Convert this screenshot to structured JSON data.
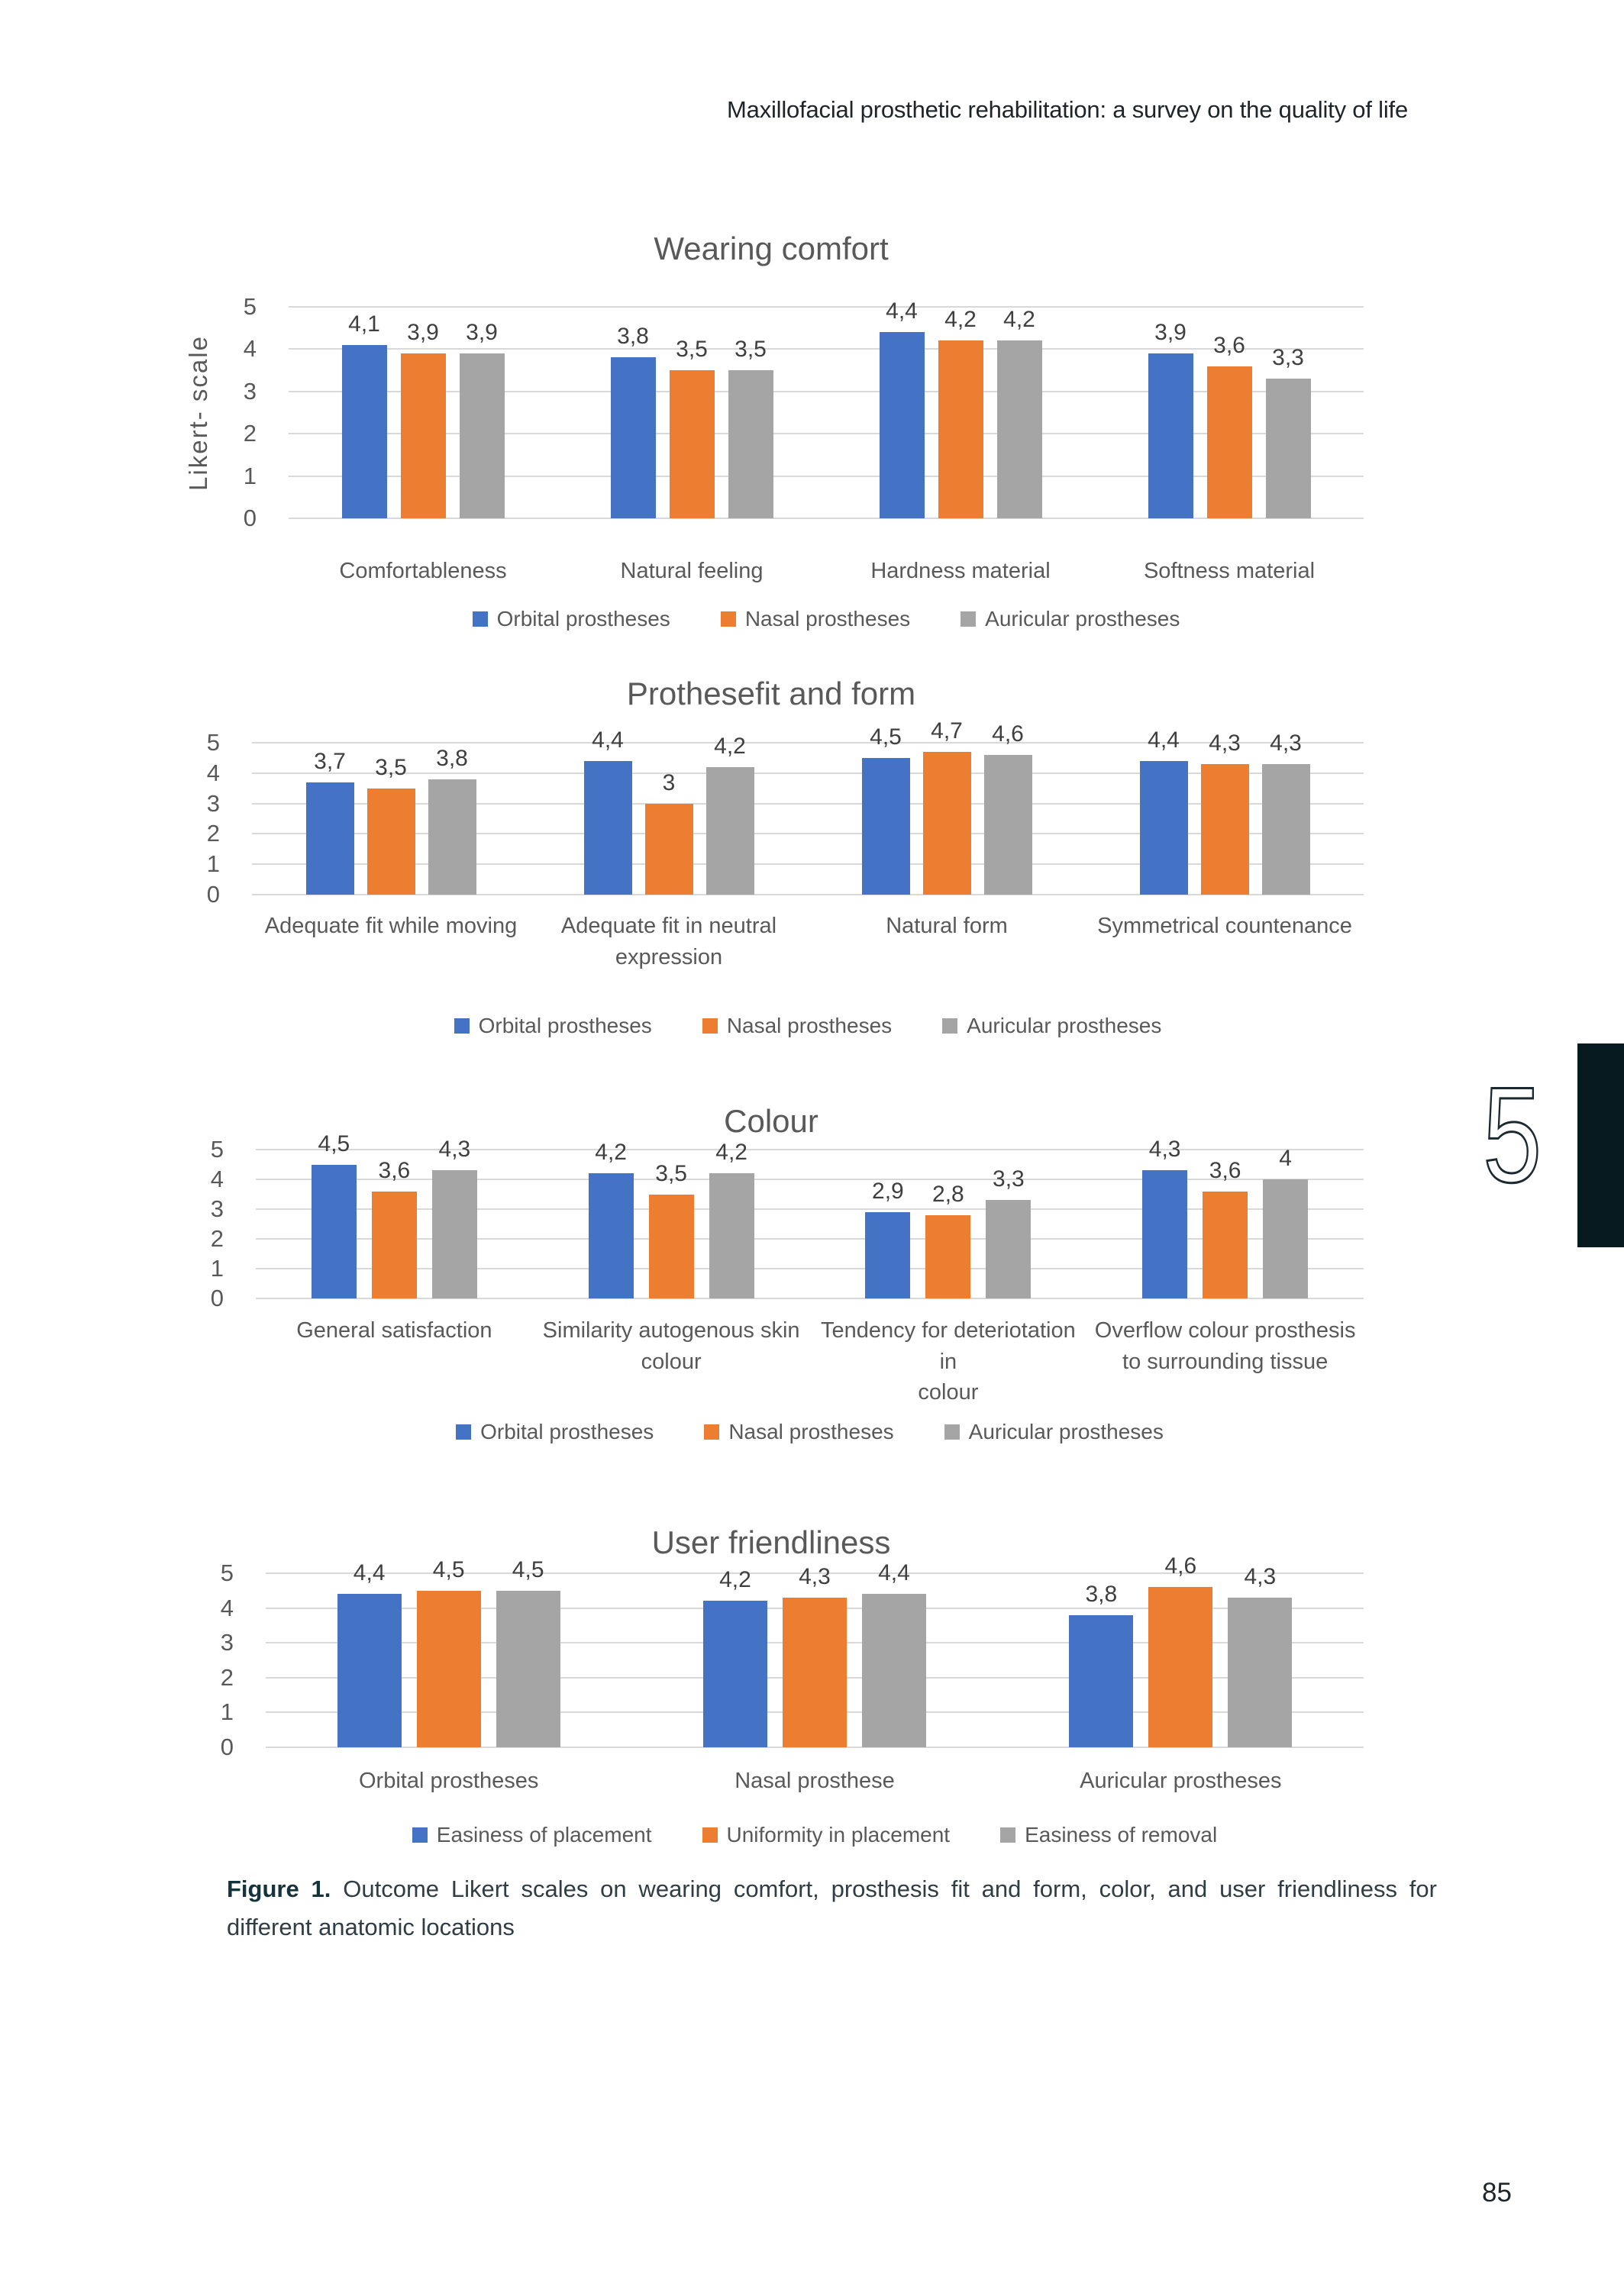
{
  "header": {
    "running_title": "Maxillofacial prosthetic rehabilitation: a survey on the quality of life"
  },
  "chapter": {
    "number": "5"
  },
  "footer": {
    "page_number": "85"
  },
  "caption": {
    "label": "Figure 1.",
    "text": "Outcome Likert scales on wearing comfort, prosthesis fit and form, color, and user friendliness for different anatomic locations"
  },
  "colors": {
    "orbital_blue": "#4472C4",
    "nasal_orange": "#ED7D31",
    "auricular_gray": "#A5A5A5",
    "series_colors": [
      "#4472C4",
      "#ED7D31",
      "#A5A5A5"
    ],
    "gridline": "#D9D9D9",
    "chart_text": "#595959",
    "data_label": "#3F3F3F",
    "chapter_bar": "#071A1F"
  },
  "chart_data": [
    {
      "type": "bar",
      "title": "Wearing comfort",
      "ylabel": "Likert- scale",
      "ylim": [
        0,
        5
      ],
      "yticks": [
        0,
        1,
        2,
        3,
        4,
        5
      ],
      "grid": true,
      "legend_position": "bottom",
      "legend": [
        "Orbital prostheses",
        "Nasal prostheses",
        "Auricular prostheses"
      ],
      "categories": [
        "Comfortableness",
        "Natural feeling",
        "Hardness material",
        "Softness material"
      ],
      "category_lines": [
        [
          "Comfortableness"
        ],
        [
          "Natural feeling"
        ],
        [
          "Hardness material"
        ],
        [
          "Softness material"
        ]
      ],
      "series": [
        {
          "name": "Orbital prostheses",
          "values": [
            4.1,
            3.8,
            4.4,
            3.9
          ],
          "labels": [
            "4,1",
            "3,8",
            "4,4",
            "3,9"
          ]
        },
        {
          "name": "Nasal prostheses",
          "values": [
            3.9,
            3.5,
            4.2,
            3.6
          ],
          "labels": [
            "3,9",
            "3,5",
            "4,2",
            "3,6"
          ]
        },
        {
          "name": "Auricular prostheses",
          "values": [
            3.9,
            3.5,
            4.2,
            3.3
          ],
          "labels": [
            "3,9",
            "3,5",
            "4,2",
            "3,3"
          ]
        }
      ]
    },
    {
      "type": "bar",
      "title": "Prothesefit and form",
      "ylim": [
        0,
        5
      ],
      "yticks": [
        0,
        1,
        2,
        3,
        4,
        5
      ],
      "grid": true,
      "legend_position": "bottom",
      "legend": [
        "Orbital prostheses",
        "Nasal prostheses",
        "Auricular prostheses"
      ],
      "categories": [
        "Adequate fit while moving",
        "Adequate fit in neutral expression",
        "Natural form",
        "Symmetrical countenance"
      ],
      "category_lines": [
        [
          "Adequate fit while moving"
        ],
        [
          "Adequate fit in neutral",
          "expression"
        ],
        [
          "Natural form"
        ],
        [
          "Symmetrical countenance"
        ]
      ],
      "series": [
        {
          "name": "Orbital prostheses",
          "values": [
            3.7,
            4.4,
            4.5,
            4.4
          ],
          "labels": [
            "3,7",
            "4,4",
            "4,5",
            "4,4"
          ]
        },
        {
          "name": "Nasal prostheses",
          "values": [
            3.5,
            3.0,
            4.7,
            4.3
          ],
          "labels": [
            "3,5",
            "3",
            "4,7",
            "4,3"
          ]
        },
        {
          "name": "Auricular prostheses",
          "values": [
            3.8,
            4.2,
            4.6,
            4.3
          ],
          "labels": [
            "3,8",
            "4,2",
            "4,6",
            "4,3"
          ]
        }
      ]
    },
    {
      "type": "bar",
      "title": "Colour",
      "ylim": [
        0,
        5
      ],
      "yticks": [
        0,
        1,
        2,
        3,
        4,
        5
      ],
      "grid": true,
      "legend_position": "bottom",
      "legend": [
        "Orbital prostheses",
        "Nasal prostheses",
        "Auricular prostheses"
      ],
      "categories": [
        "General satisfaction",
        "Similarity autogenous skin colour",
        "Tendency for deteriotation in colour",
        "Overflow colour prosthesis to surrounding tissue"
      ],
      "category_lines": [
        [
          "General satisfaction"
        ],
        [
          "Similarity autogenous skin",
          "colour"
        ],
        [
          "Tendency for deteriotation in",
          "colour"
        ],
        [
          "Overflow colour prosthesis",
          "to surrounding tissue"
        ]
      ],
      "series": [
        {
          "name": "Orbital prostheses",
          "values": [
            4.5,
            4.2,
            2.9,
            4.3
          ],
          "labels": [
            "4,5",
            "4,2",
            "2,9",
            "4,3"
          ]
        },
        {
          "name": "Nasal prostheses",
          "values": [
            3.6,
            3.5,
            2.8,
            3.6
          ],
          "labels": [
            "3,6",
            "3,5",
            "2,8",
            "3,6"
          ]
        },
        {
          "name": "Auricular prostheses",
          "values": [
            4.3,
            4.2,
            3.3,
            4.0
          ],
          "labels": [
            "4,3",
            "4,2",
            "3,3",
            "4"
          ]
        }
      ]
    },
    {
      "type": "bar",
      "title": "User friendliness",
      "ylim": [
        0,
        5
      ],
      "yticks": [
        0,
        1,
        2,
        3,
        4,
        5
      ],
      "grid": true,
      "legend_position": "bottom",
      "legend": [
        "Easiness of placement",
        "Uniformity in placement",
        "Easiness of removal"
      ],
      "categories": [
        "Orbital prostheses",
        "Nasal prosthese",
        "Auricular prostheses"
      ],
      "category_lines": [
        [
          "Orbital prostheses"
        ],
        [
          "Nasal prosthese"
        ],
        [
          "Auricular prostheses"
        ]
      ],
      "series": [
        {
          "name": "Easiness of placement",
          "values": [
            4.4,
            4.2,
            3.8
          ],
          "labels": [
            "4,4",
            "4,2",
            "3,8"
          ]
        },
        {
          "name": "Uniformity in placement",
          "values": [
            4.5,
            4.3,
            4.6
          ],
          "labels": [
            "4,5",
            "4,3",
            "4,6"
          ]
        },
        {
          "name": "Easiness of removal",
          "values": [
            4.5,
            4.4,
            4.3
          ],
          "labels": [
            "4,5",
            "4,4",
            "4,3"
          ]
        }
      ]
    }
  ]
}
